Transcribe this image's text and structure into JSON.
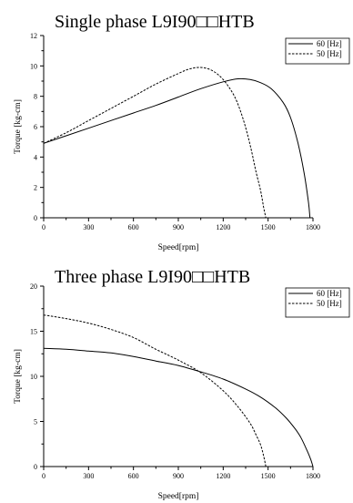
{
  "chart_data": [
    {
      "type": "line",
      "title": "Single phase L9I90□□HTB",
      "xlabel": "Speed[rpm]",
      "ylabel": "Torque [kg-cm]",
      "xlim": [
        0,
        1800
      ],
      "ylim": [
        0,
        12
      ],
      "xticks": [
        "0",
        "300",
        "600",
        "900",
        "1200",
        "1500",
        "1800"
      ],
      "yticks": [
        "0",
        "2",
        "4",
        "6",
        "8",
        "10",
        "12"
      ],
      "grid": false,
      "legend_position": "top-right",
      "series": [
        {
          "name": "60 [Hz]",
          "style": "solid",
          "x": [
            0,
            150,
            300,
            450,
            600,
            750,
            900,
            1050,
            1200,
            1300,
            1380,
            1450,
            1520,
            1600,
            1650,
            1700,
            1740,
            1770,
            1780
          ],
          "y": [
            4.9,
            5.4,
            5.9,
            6.4,
            6.9,
            7.4,
            7.95,
            8.5,
            8.95,
            9.15,
            9.1,
            8.9,
            8.5,
            7.6,
            6.6,
            4.9,
            3.0,
            1.0,
            0
          ]
        },
        {
          "name": "50 [Hz]",
          "style": "dashed",
          "x": [
            0,
            150,
            300,
            450,
            600,
            750,
            900,
            975,
            1050,
            1125,
            1200,
            1275,
            1330,
            1380,
            1420,
            1450,
            1470,
            1485
          ],
          "y": [
            4.9,
            5.6,
            6.4,
            7.2,
            8.0,
            8.8,
            9.5,
            9.8,
            9.9,
            9.7,
            9.1,
            8.0,
            6.6,
            4.8,
            3.0,
            1.8,
            0.7,
            0
          ]
        }
      ]
    },
    {
      "type": "line",
      "title": "Three phase L9I90□□HTB",
      "xlabel": "Speed[rpm]",
      "ylabel": "Torque [kg-cm]",
      "xlim": [
        0,
        1800
      ],
      "ylim": [
        0,
        20
      ],
      "xticks": [
        "0",
        "300",
        "600",
        "900",
        "1200",
        "1500",
        "1800"
      ],
      "yticks": [
        "0",
        "5",
        "10",
        "15",
        "20"
      ],
      "grid": false,
      "legend_position": "top-right",
      "series": [
        {
          "name": "60 [Hz]",
          "style": "solid",
          "x": [
            0,
            150,
            300,
            450,
            600,
            750,
            900,
            1050,
            1200,
            1350,
            1450,
            1550,
            1620,
            1680,
            1720,
            1760,
            1785,
            1800
          ],
          "y": [
            13.1,
            13.0,
            12.8,
            12.6,
            12.2,
            11.7,
            11.2,
            10.5,
            9.7,
            8.6,
            7.7,
            6.5,
            5.4,
            4.2,
            3.2,
            1.8,
            0.8,
            0
          ]
        },
        {
          "name": "50 [Hz]",
          "style": "dashed",
          "x": [
            0,
            150,
            300,
            450,
            600,
            750,
            900,
            1050,
            1200,
            1300,
            1380,
            1420,
            1450,
            1470,
            1485
          ],
          "y": [
            16.8,
            16.4,
            15.9,
            15.2,
            14.3,
            13.0,
            11.8,
            10.4,
            8.4,
            6.6,
            4.8,
            3.5,
            2.4,
            1.2,
            0
          ]
        }
      ]
    }
  ]
}
